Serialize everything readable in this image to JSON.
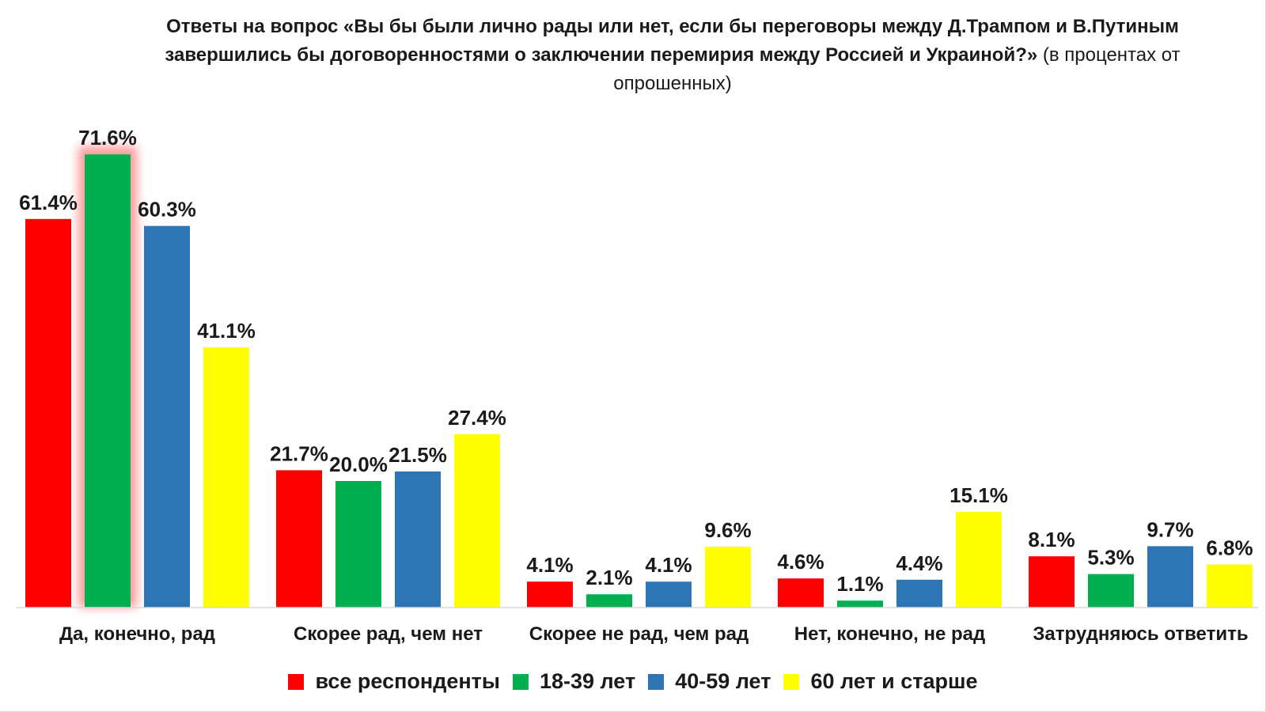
{
  "title": {
    "bold": "Ответы на вопрос «Вы бы были лично рады или нет, если бы переговоры между Д.Трампом и В.Путиным завершились бы договоренностями о заключении перемирия между Россией и Украиной?»",
    "normal": "(в процентах от опрошенных)"
  },
  "chart_data": {
    "type": "bar",
    "categories": [
      "Да, конечно, рад",
      "Скорее рад, чем нет",
      "Скорее не рад, чем рад",
      "Нет, конечно, не рад",
      "Затрудняюсь ответить"
    ],
    "series": [
      {
        "name": "все респонденты",
        "color": "#ff0000",
        "values": [
          61.4,
          21.7,
          4.1,
          4.6,
          8.1
        ]
      },
      {
        "name": "18-39 лет",
        "color": "#00b050",
        "values": [
          71.6,
          20.0,
          2.1,
          1.1,
          5.3
        ]
      },
      {
        "name": "40-59 лет",
        "color": "#2e75b6",
        "values": [
          60.3,
          21.5,
          4.1,
          4.4,
          9.7
        ]
      },
      {
        "name": "60 лет и старше",
        "color": "#ffff00",
        "values": [
          41.1,
          27.4,
          9.6,
          15.1,
          6.8
        ]
      }
    ],
    "data_labels": [
      [
        "61.4%",
        "21.7%",
        "4.1%",
        "4.6%",
        "8.1%"
      ],
      [
        "71.6%",
        "20.0%",
        "2.1%",
        "1.1%",
        "5.3%"
      ],
      [
        "60.3%",
        "21.5%",
        "4.1%",
        "4.4%",
        "9.7%"
      ],
      [
        "41.1%",
        "27.4%",
        "9.6%",
        "15.1%",
        "6.8%"
      ]
    ],
    "ylim": [
      0,
      75
    ],
    "grid": false,
    "legend_position": "bottom",
    "highlight": {
      "series": 1,
      "category": 0,
      "color": "#ff9999"
    }
  }
}
